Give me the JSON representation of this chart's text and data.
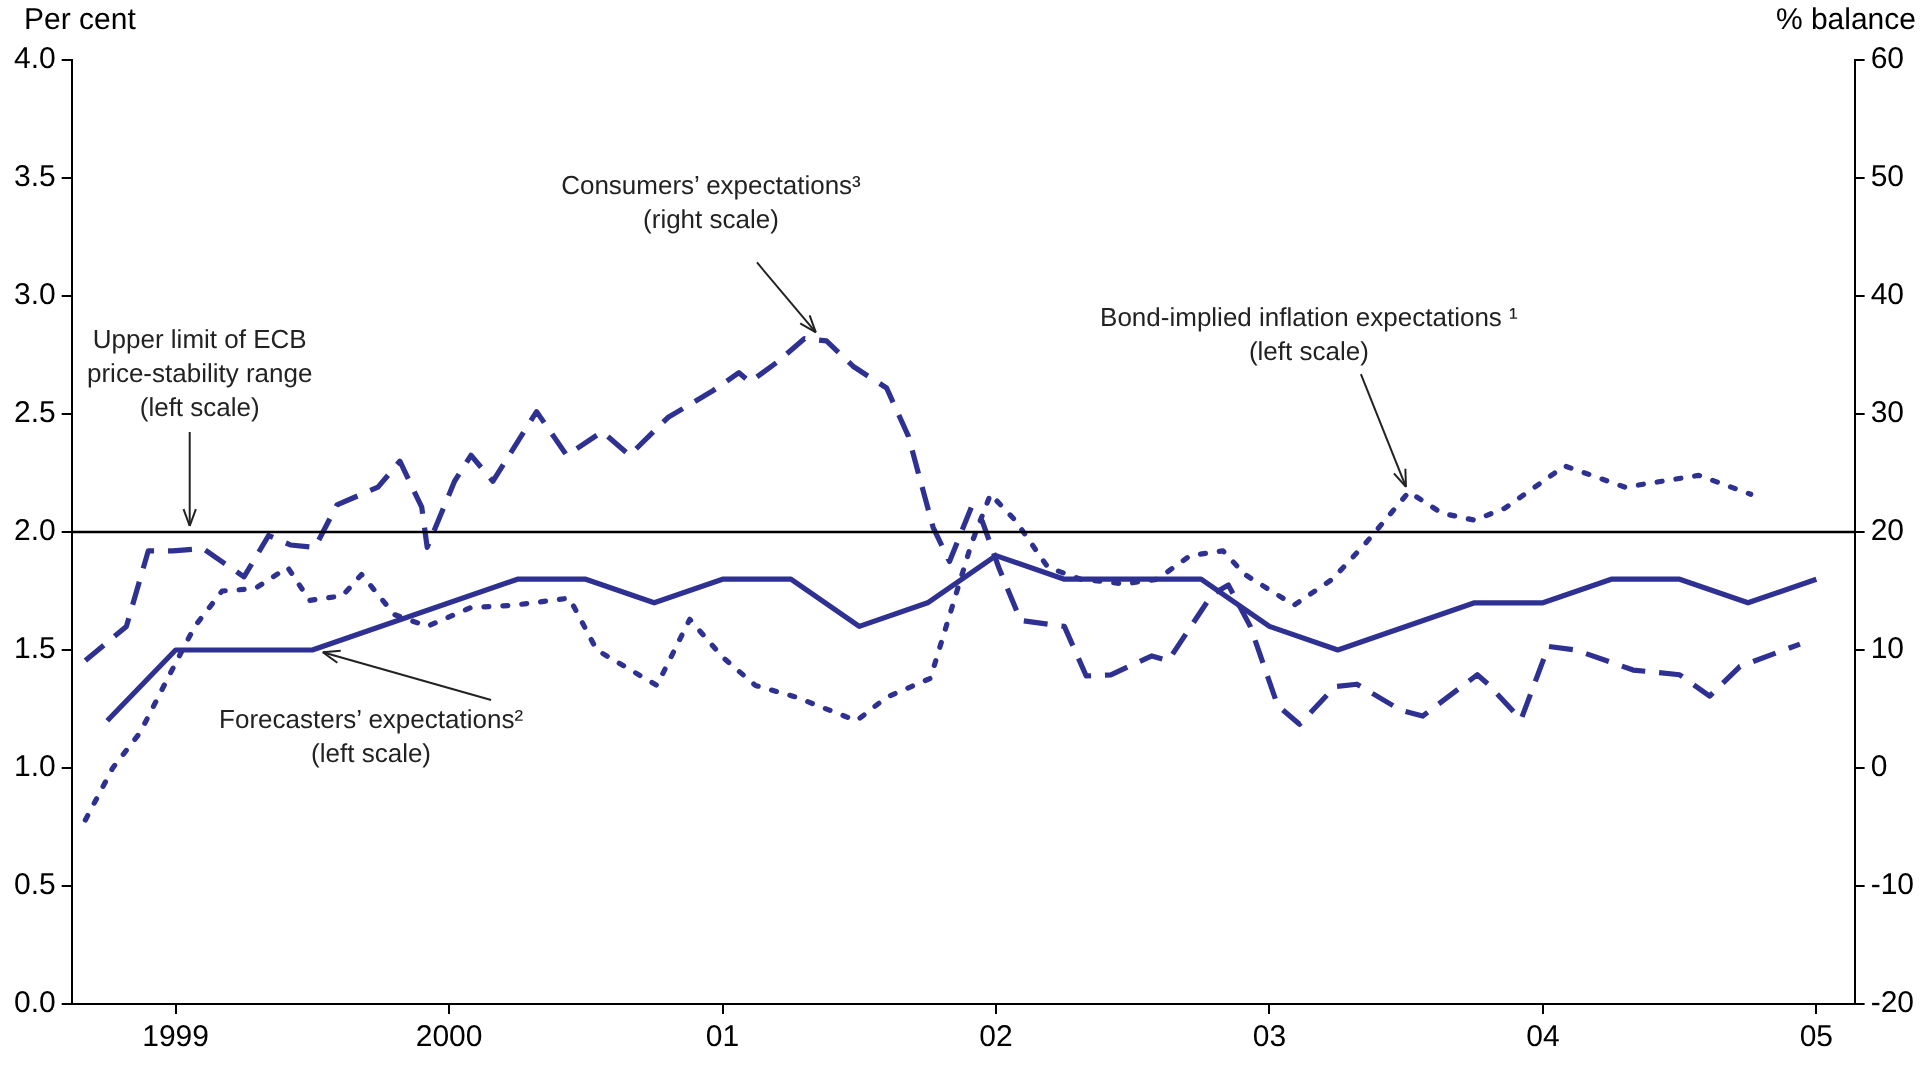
{
  "chart_data": {
    "type": "line",
    "ylabel": "Per cent",
    "y2label": "% balance",
    "xlim": [
      1998.62,
      2005.14
    ],
    "xticks": [
      1999,
      2000,
      {
        "value": 2001,
        "label": "01"
      },
      {
        "value": 2002,
        "label": "02"
      },
      {
        "value": 2003,
        "label": "03"
      },
      {
        "value": 2004,
        "label": "04"
      },
      {
        "value": 2005,
        "label": "05"
      }
    ],
    "ylim": [
      0,
      4
    ],
    "yticks": [
      {
        "value": 0,
        "label": "0.0"
      },
      {
        "value": 0.5,
        "label": "0.5"
      },
      {
        "value": 1,
        "label": "1.0"
      },
      {
        "value": 1.5,
        "label": "1.5"
      },
      {
        "value": 2,
        "label": "2.0"
      },
      {
        "value": 2.5,
        "label": "2.5"
      },
      {
        "value": 3,
        "label": "3.0"
      },
      {
        "value": 3.5,
        "label": "3.5"
      },
      {
        "value": 4,
        "label": "4.0"
      }
    ],
    "y2lim": [
      -20,
      60
    ],
    "y2ticks": [
      -20,
      -10,
      0,
      10,
      20,
      30,
      40,
      50,
      60
    ],
    "grid": false,
    "legend": false,
    "marker": "none",
    "series": [
      {
        "color": "#2e3192",
        "line_style": "solid",
        "x": [
          1998.75,
          1999.0,
          1999.5,
          2000.25,
          2000.5,
          2000.75,
          2001.0,
          2001.25,
          2001.5,
          2001.75,
          2002.0,
          2002.25,
          2002.75,
          2003.0,
          2003.25,
          2003.75,
          2004.0,
          2004.25,
          2004.5,
          2004.75,
          2005.0
        ],
        "values": [
          1.2,
          1.5,
          1.5,
          1.8,
          1.8,
          1.7,
          1.8,
          1.8,
          1.6,
          1.7,
          1.9,
          1.8,
          1.8,
          1.6,
          1.5,
          1.7,
          1.7,
          1.8,
          1.8,
          1.7,
          1.8
        ]
      },
      {
        "color": "#2e3192",
        "line_style": "dotted",
        "x": [
          1998.67,
          1998.77,
          1998.87,
          1998.98,
          1999.07,
          1999.17,
          1999.29,
          1999.41,
          1999.49,
          1999.61,
          1999.68,
          1999.8,
          1999.92,
          2000.08,
          2000.24,
          2000.44,
          2000.54,
          2000.76,
          2000.88,
          2001.0,
          2001.12,
          2001.27,
          2001.49,
          2001.6,
          2001.76,
          2001.91,
          2001.98,
          2002.07,
          2002.19,
          2002.31,
          2002.47,
          2002.59,
          2002.71,
          2002.83,
          2002.91,
          2003.09,
          2003.23,
          2003.35,
          2003.51,
          2003.63,
          2003.75,
          2003.86,
          2004.08,
          2004.3,
          2004.57,
          2004.76
        ],
        "values": [
          0.78,
          1.0,
          1.15,
          1.4,
          1.6,
          1.75,
          1.76,
          1.85,
          1.71,
          1.73,
          1.82,
          1.65,
          1.6,
          1.68,
          1.69,
          1.72,
          1.5,
          1.35,
          1.63,
          1.47,
          1.35,
          1.3,
          1.2,
          1.3,
          1.38,
          1.95,
          2.16,
          2.05,
          1.85,
          1.8,
          1.78,
          1.8,
          1.9,
          1.92,
          1.82,
          1.69,
          1.8,
          1.95,
          2.17,
          2.08,
          2.05,
          2.1,
          2.28,
          2.19,
          2.24,
          2.16
        ]
      },
      {
        "color": "#2e3192",
        "line_style": "dashed",
        "axis": "y2",
        "x": [
          1998.67,
          1998.82,
          1998.9,
          1998.99,
          1999.1,
          1999.25,
          1999.34,
          1999.42,
          1999.51,
          1999.59,
          1999.74,
          1999.82,
          1999.9,
          1999.92,
          2000.02,
          2000.08,
          2000.16,
          2000.32,
          2000.43,
          2000.56,
          2000.66,
          2000.8,
          2000.96,
          2001.06,
          2001.1,
          2001.2,
          2001.3,
          2001.38,
          2001.48,
          2001.6,
          2001.68,
          2001.73,
          2001.77,
          2001.83,
          2001.91,
          2001.95,
          2002.01,
          2002.09,
          2002.25,
          2002.33,
          2002.42,
          2002.57,
          2002.63,
          2002.79,
          2002.85,
          2002.93,
          2003.03,
          2003.11,
          2003.24,
          2003.32,
          2003.48,
          2003.56,
          2003.76,
          2003.8,
          2003.92,
          2004.02,
          2004.12,
          2004.33,
          2004.5,
          2004.61,
          2004.72,
          2004.94
        ],
        "values": [
          9.1,
          12.0,
          18.4,
          18.4,
          18.6,
          16.2,
          19.7,
          18.9,
          18.7,
          22.3,
          23.8,
          26.0,
          22.1,
          18.7,
          24.3,
          26.5,
          24.3,
          30.2,
          26.5,
          28.5,
          26.5,
          29.7,
          31.9,
          33.5,
          32.7,
          34.4,
          36.4,
          36.2,
          34.0,
          32.2,
          28.1,
          23.8,
          20.4,
          17.5,
          22.1,
          20.9,
          17.0,
          12.5,
          12.0,
          7.8,
          7.9,
          9.5,
          9.1,
          14.7,
          15.5,
          12.0,
          5.3,
          3.7,
          6.9,
          7.1,
          4.9,
          4.4,
          7.9,
          7.1,
          4.1,
          10.3,
          10.0,
          8.3,
          7.9,
          6.1,
          8.6,
          10.5
        ]
      }
    ],
    "ref_lines": [
      {
        "axis": "y",
        "value": 2,
        "label": "Upper limit of ECB\nprice-stability range\n(left scale)",
        "color": "#000000"
      }
    ],
    "annotations": [
      {
        "text": "Consumers’ expectations³ (right scale)",
        "x": 2001.36,
        "y": 2.82
      },
      {
        "text": "Bond-implied inflation expectations ¹ (left scale)",
        "x": 2003.51,
        "y": 2.16
      },
      {
        "text": "Forecasters’ expectations² (left scale)",
        "x": 1999.51,
        "y": 1.5
      }
    ]
  }
}
